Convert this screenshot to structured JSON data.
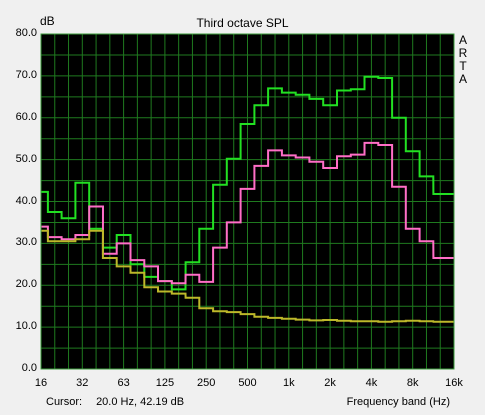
{
  "chart_data": {
    "type": "line",
    "title": "Third octave SPL",
    "ylabel": "dB",
    "xlabel": "Frequency band (Hz)",
    "ylim": [
      0,
      80
    ],
    "yticks": [
      "0.0",
      "10.0",
      "20.0",
      "30.0",
      "40.0",
      "50.0",
      "60.0",
      "70.0",
      "80.0"
    ],
    "xticks": [
      "16",
      "32",
      "63",
      "125",
      "250",
      "500",
      "1k",
      "2k",
      "4k",
      "8k",
      "16k"
    ],
    "bands": [
      16,
      20,
      25,
      31.5,
      40,
      50,
      63,
      80,
      100,
      125,
      160,
      200,
      250,
      315,
      400,
      500,
      630,
      800,
      1000,
      1250,
      1600,
      2000,
      2500,
      3150,
      4000,
      5000,
      6300,
      8000,
      10000,
      12500,
      16000
    ],
    "grid": true,
    "background": "#000000",
    "grid_color": "#1f7a1f",
    "series": [
      {
        "color": "#22e022",
        "values": [
          42.3,
          37.5,
          36.0,
          44.5,
          33.5,
          29.0,
          32.0,
          25.0,
          22.0,
          21.0,
          19.0,
          25.5,
          33.5,
          44.0,
          50.2,
          58.5,
          63.0,
          67.0,
          66.0,
          65.5,
          64.5,
          63.0,
          66.5,
          66.8,
          69.8,
          69.5,
          60.0,
          52.0,
          46.0,
          41.8,
          41.8
        ]
      },
      {
        "color": "#ff6ec7",
        "values": [
          34.0,
          31.5,
          31.0,
          32.0,
          38.8,
          27.5,
          30.0,
          26.0,
          24.5,
          21.0,
          20.5,
          22.5,
          20.8,
          29.0,
          35.0,
          43.0,
          48.5,
          52.2,
          51.0,
          50.5,
          49.5,
          48.0,
          50.8,
          51.2,
          54.0,
          53.5,
          43.5,
          33.5,
          30.5,
          26.5,
          26.5
        ]
      },
      {
        "color": "#bdb82a",
        "values": [
          33.0,
          30.5,
          30.5,
          31.0,
          33.0,
          26.5,
          24.5,
          23.0,
          19.5,
          18.5,
          18.0,
          17.0,
          14.5,
          13.8,
          13.6,
          13.1,
          12.5,
          12.2,
          12.0,
          11.8,
          11.6,
          11.7,
          11.5,
          11.4,
          11.4,
          11.3,
          11.4,
          11.5,
          11.4,
          11.3,
          11.3
        ]
      }
    ]
  },
  "brand": [
    "A",
    "R",
    "T",
    "A"
  ],
  "status": {
    "cursor_label": "Cursor:",
    "cursor_value": "20.0 Hz, 42.19 dB"
  }
}
